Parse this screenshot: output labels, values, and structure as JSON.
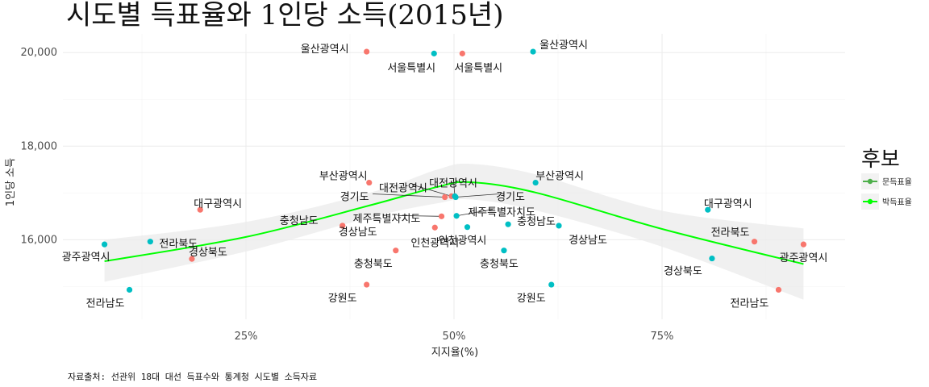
{
  "chart_data": {
    "type": "scatter",
    "title": "시도별 득표율와 1인당 소득(2015년)",
    "xlabel": "지지율(%)",
    "ylabel": "1인당 소득",
    "x_ticks": [
      "25%",
      "50%",
      "75%"
    ],
    "y_ticks": [
      "16,000",
      "18,000",
      "20,000"
    ],
    "xlim": [
      0.03,
      0.97
    ],
    "ylim": [
      14300,
      20400
    ],
    "caption": "자료출처: 선관위 18대 대선 득표수와 통계청 시도별 소득자료",
    "legend": {
      "title": "후보",
      "position": "right",
      "entries": [
        {
          "name": "문득표율",
          "color": "#4daf4a"
        },
        {
          "name": "박득표율",
          "color": "#00ff00"
        }
      ]
    },
    "series": [
      {
        "name": "문득표율",
        "color": "#F8766D",
        "points": [
          {
            "label": "울산광역시",
            "x": 0.395,
            "y": 20020
          },
          {
            "label": "서울특별시",
            "x": 0.51,
            "y": 19980
          },
          {
            "label": "부산광역시",
            "x": 0.398,
            "y": 17220
          },
          {
            "label": "대구광역시",
            "x": 0.195,
            "y": 16640
          },
          {
            "label": "대전광역시",
            "x": 0.497,
            "y": 16930
          },
          {
            "label": "경기도",
            "x": 0.489,
            "y": 16910
          },
          {
            "label": "제주특별자치도",
            "x": 0.485,
            "y": 16500
          },
          {
            "label": "충청남도",
            "x": 0.366,
            "y": 16300
          },
          {
            "label": "경상남도",
            "x": 0.366,
            "y": 16300
          },
          {
            "label": "인천광역시",
            "x": 0.477,
            "y": 16260
          },
          {
            "label": "전라북도",
            "x": 0.861,
            "y": 15960
          },
          {
            "label": "경상북도",
            "x": 0.185,
            "y": 15590
          },
          {
            "label": "충청북도",
            "x": 0.43,
            "y": 15770
          },
          {
            "label": "광주광역시",
            "x": 0.92,
            "y": 15900
          },
          {
            "label": "강원도",
            "x": 0.395,
            "y": 15040
          },
          {
            "label": "전라남도",
            "x": 0.89,
            "y": 14930
          }
        ]
      },
      {
        "name": "박득표율",
        "color": "#00BFC4",
        "points": [
          {
            "label": "울산광역시",
            "x": 0.595,
            "y": 20020
          },
          {
            "label": "서울특별시",
            "x": 0.476,
            "y": 19980
          },
          {
            "label": "부산광역시",
            "x": 0.598,
            "y": 17220
          },
          {
            "label": "대구광역시",
            "x": 0.805,
            "y": 16640
          },
          {
            "label": "대전광역시",
            "x": 0.501,
            "y": 16930
          },
          {
            "label": "경기도",
            "x": 0.502,
            "y": 16910
          },
          {
            "label": "제주특별자치도",
            "x": 0.503,
            "y": 16510
          },
          {
            "label": "충청남도",
            "x": 0.565,
            "y": 16330
          },
          {
            "label": "경상남도",
            "x": 0.626,
            "y": 16300
          },
          {
            "label": "인천광역시",
            "x": 0.516,
            "y": 16270
          },
          {
            "label": "전라북도",
            "x": 0.135,
            "y": 15960
          },
          {
            "label": "경상북도",
            "x": 0.81,
            "y": 15600
          },
          {
            "label": "충청북도",
            "x": 0.56,
            "y": 15770
          },
          {
            "label": "광주광역시",
            "x": 0.08,
            "y": 15900
          },
          {
            "label": "강원도",
            "x": 0.617,
            "y": 15040
          },
          {
            "label": "전라남도",
            "x": 0.11,
            "y": 14930
          }
        ]
      }
    ],
    "smooth": {
      "color": "#00ff00",
      "band_color": "#ebebeb",
      "x": [
        0.08,
        0.25,
        0.4,
        0.48,
        0.52,
        0.6,
        0.75,
        0.92
      ],
      "y": [
        15540,
        16060,
        16740,
        17130,
        17230,
        17000,
        16230,
        15480
      ],
      "upper": [
        16000,
        16380,
        17010,
        17500,
        17620,
        17390,
        16620,
        16240
      ],
      "lower": [
        15100,
        15750,
        16480,
        16780,
        16860,
        16620,
        15850,
        14720
      ]
    }
  }
}
